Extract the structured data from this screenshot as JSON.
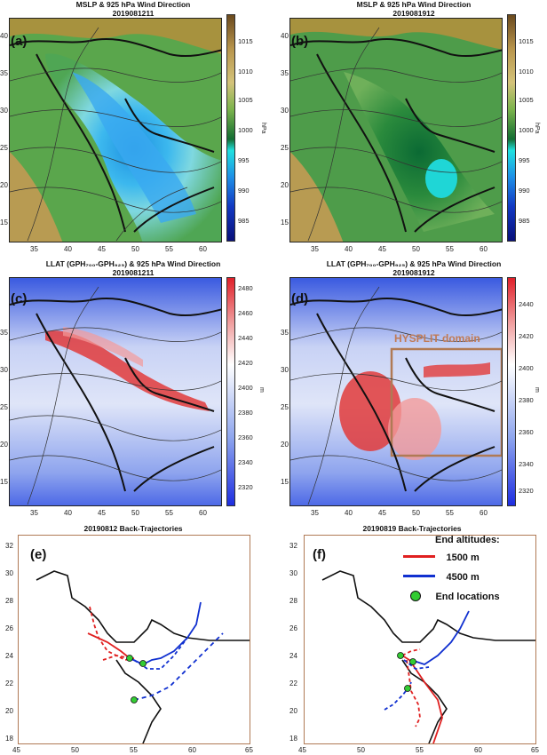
{
  "panels": {
    "a": {
      "letter": "(a)",
      "title1": "MSLP & 925 hPa Wind Direction",
      "title2": "2019081211"
    },
    "b": {
      "letter": "(b)",
      "title1": "MSLP & 925 hPa Wind Direction",
      "title2": "2019081912"
    },
    "c": {
      "letter": "(c)",
      "title1": "LLAT (GPH₇₀₀-GPH₉₂₅) & 925 hPa Wind Direction",
      "title2": "2019081211"
    },
    "d": {
      "letter": "(d)",
      "title1": "LLAT (GPH₇₀₀-GPH₉₂₅) & 925 hPa Wind Direction",
      "title2": "2019081912",
      "box_label": "HYSPLIT domain"
    },
    "e": {
      "letter": "(e)",
      "title1": "20190812 Back-Trajectories"
    },
    "f": {
      "letter": "(f)",
      "title1": "20190819 Back-Trajectories"
    }
  },
  "map_axes": {
    "x_ticks": [
      "35",
      "40",
      "45",
      "50",
      "55",
      "60"
    ],
    "y_ticks": [
      "40",
      "35",
      "30",
      "25",
      "20",
      "15"
    ]
  },
  "mslp_colorbar": {
    "unit": "hPa",
    "ticks": [
      "1015",
      "1010",
      "1005",
      "1000",
      "995",
      "990",
      "985"
    ],
    "colors": [
      "#6b4a1e",
      "#9c7a3a",
      "#c9b16a",
      "#6fa64a",
      "#2f8f3a",
      "#0f6a34",
      "#1fd6d6",
      "#1d8fe0",
      "#1038c0",
      "#0a1280"
    ]
  },
  "llat_c_colorbar": {
    "unit": "m",
    "ticks": [
      "2480",
      "2460",
      "2440",
      "2420",
      "2400",
      "2380",
      "2360",
      "2340",
      "2320"
    ]
  },
  "llat_d_colorbar": {
    "unit": "m",
    "ticks": [
      "2440",
      "2420",
      "2400",
      "2380",
      "2360",
      "2340",
      "2320"
    ]
  },
  "traj_axes": {
    "x_ticks": [
      "45",
      "50",
      "55",
      "60",
      "65"
    ],
    "y_ticks": [
      "32",
      "30",
      "28",
      "26",
      "24",
      "22",
      "20",
      "18"
    ]
  },
  "legend": {
    "title": "End altitudes:",
    "items": [
      {
        "label": "1500 m",
        "color": "#e02020"
      },
      {
        "label": "4500 m",
        "color": "#1030d0"
      },
      {
        "label": "End locations",
        "color": "#33cc33"
      }
    ]
  }
}
